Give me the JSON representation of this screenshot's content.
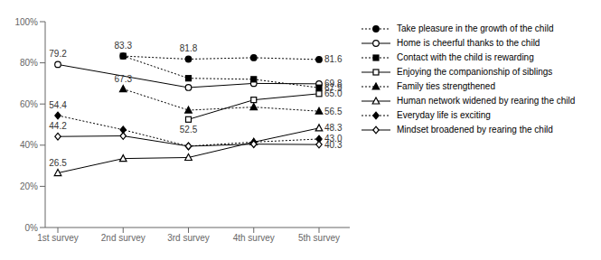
{
  "chart_data": {
    "type": "line",
    "categories": [
      "1st survey",
      "2nd survey",
      "3rd survey",
      "4th survey",
      "5th survey"
    ],
    "series": [
      {
        "name": "Take pleasure in the growth of the child",
        "values": [
          null,
          83.3,
          81.8,
          82.5,
          81.6
        ],
        "color": "#000000",
        "marker": "filled_circle",
        "line_style": "dotted"
      },
      {
        "name": "Home is cheerful thanks to the child",
        "values": [
          79.2,
          null,
          68.0,
          70.0,
          69.8
        ],
        "color": "#000000",
        "marker": "open_circle",
        "line_style": "solid"
      },
      {
        "name": "Contact with the child is rewarding",
        "values": [
          null,
          83.3,
          72.5,
          72.0,
          67.9
        ],
        "color": "#000000",
        "marker": "filled_square",
        "line_style": "dotted"
      },
      {
        "name": "Enjoying the companionship of siblings",
        "values": [
          null,
          null,
          52.5,
          62.0,
          65.0
        ],
        "color": "#000000",
        "marker": "open_square",
        "line_style": "solid"
      },
      {
        "name": "Family ties strengthened",
        "values": [
          null,
          67.3,
          57.0,
          58.5,
          56.5
        ],
        "color": "#000000",
        "marker": "filled_triangle",
        "line_style": "dotted"
      },
      {
        "name": "Human network widened by rearing the child",
        "values": [
          26.5,
          33.5,
          34.0,
          41.5,
          48.3
        ],
        "color": "#000000",
        "marker": "open_triangle",
        "line_style": "solid"
      },
      {
        "name": "Everyday life is exciting",
        "values": [
          54.4,
          47.5,
          39.5,
          41.5,
          43.0
        ],
        "color": "#000000",
        "marker": "filled_diamond",
        "line_style": "dotted"
      },
      {
        "name": "Mindset broadened by rearing the child",
        "values": [
          44.2,
          44.5,
          39.5,
          40.5,
          40.3
        ],
        "color": "#000000",
        "marker": "open_diamond",
        "line_style": "solid"
      }
    ],
    "annotations": [
      {
        "series": 0,
        "point": 1,
        "text": "83.3"
      },
      {
        "series": 0,
        "point": 2,
        "text": "81.8"
      },
      {
        "series": 0,
        "point": 4,
        "text": "81.6"
      },
      {
        "series": 1,
        "point": 0,
        "text": "79.2"
      },
      {
        "series": 1,
        "point": 4,
        "text": "69.8"
      },
      {
        "series": 2,
        "point": 4,
        "text": "67.9"
      },
      {
        "series": 3,
        "point": 2,
        "text": "52.5"
      },
      {
        "series": 3,
        "point": 4,
        "text": "65.0"
      },
      {
        "series": 4,
        "point": 1,
        "text": "67.3"
      },
      {
        "series": 4,
        "point": 4,
        "text": "56.5"
      },
      {
        "series": 5,
        "point": 0,
        "text": "26.5"
      },
      {
        "series": 5,
        "point": 4,
        "text": "48.3"
      },
      {
        "series": 6,
        "point": 0,
        "text": "54.4"
      },
      {
        "series": 6,
        "point": 4,
        "text": "43.0"
      },
      {
        "series": 7,
        "point": 0,
        "text": "44.2"
      },
      {
        "series": 7,
        "point": 4,
        "text": "40.3"
      }
    ],
    "ylim": [
      0,
      100
    ],
    "yticks": [
      {
        "value": 0,
        "label": "0%"
      },
      {
        "value": 20,
        "label": "20%"
      },
      {
        "value": 40,
        "label": "40%"
      },
      {
        "value": 60,
        "label": "60%"
      },
      {
        "value": 80,
        "label": "80%"
      },
      {
        "value": 100,
        "label": "100%"
      }
    ],
    "grid": false,
    "legend": "right"
  }
}
